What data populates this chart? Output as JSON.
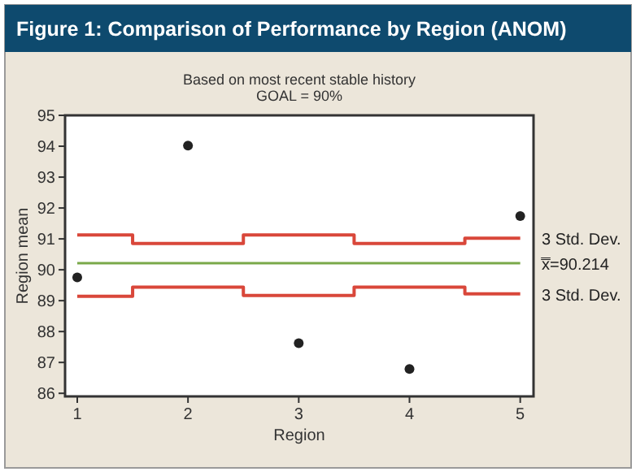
{
  "chart_data": {
    "type": "scatter",
    "title": "Figure 1: Comparison of Performance by Region (ANOM)",
    "subtitle": "Based on most recent stable history",
    "annotations": [
      "GOAL = 90%"
    ],
    "xlabel": "Region",
    "ylabel": "Region mean",
    "x": [
      1,
      2,
      3,
      4,
      5
    ],
    "series": [
      {
        "marker": "circle",
        "color": "#222222",
        "values": [
          89.75,
          94.02,
          87.62,
          86.79,
          91.74
        ]
      },
      {
        "type": "step",
        "name": "3 Std. Dev.",
        "color": "#d9473a",
        "values": [
          91.13,
          90.85,
          91.13,
          90.85,
          91.02
        ]
      },
      {
        "type": "step",
        "name": "3 Std. Dev.",
        "color": "#d9473a",
        "values": [
          89.14,
          89.44,
          89.17,
          89.44,
          89.22
        ]
      }
    ],
    "ref_lines": [
      {
        "axis": "y",
        "value": 90.214,
        "label": "x̿=90.214",
        "color": "#7aa94a"
      }
    ],
    "xlim": [
      0.89,
      5.12
    ],
    "xticks": [
      1,
      2,
      3,
      4,
      5
    ],
    "ylim": [
      85.9,
      95
    ],
    "yticks": [
      86,
      87,
      88,
      89,
      90,
      91,
      92,
      93,
      94,
      95
    ],
    "grid": false
  }
}
